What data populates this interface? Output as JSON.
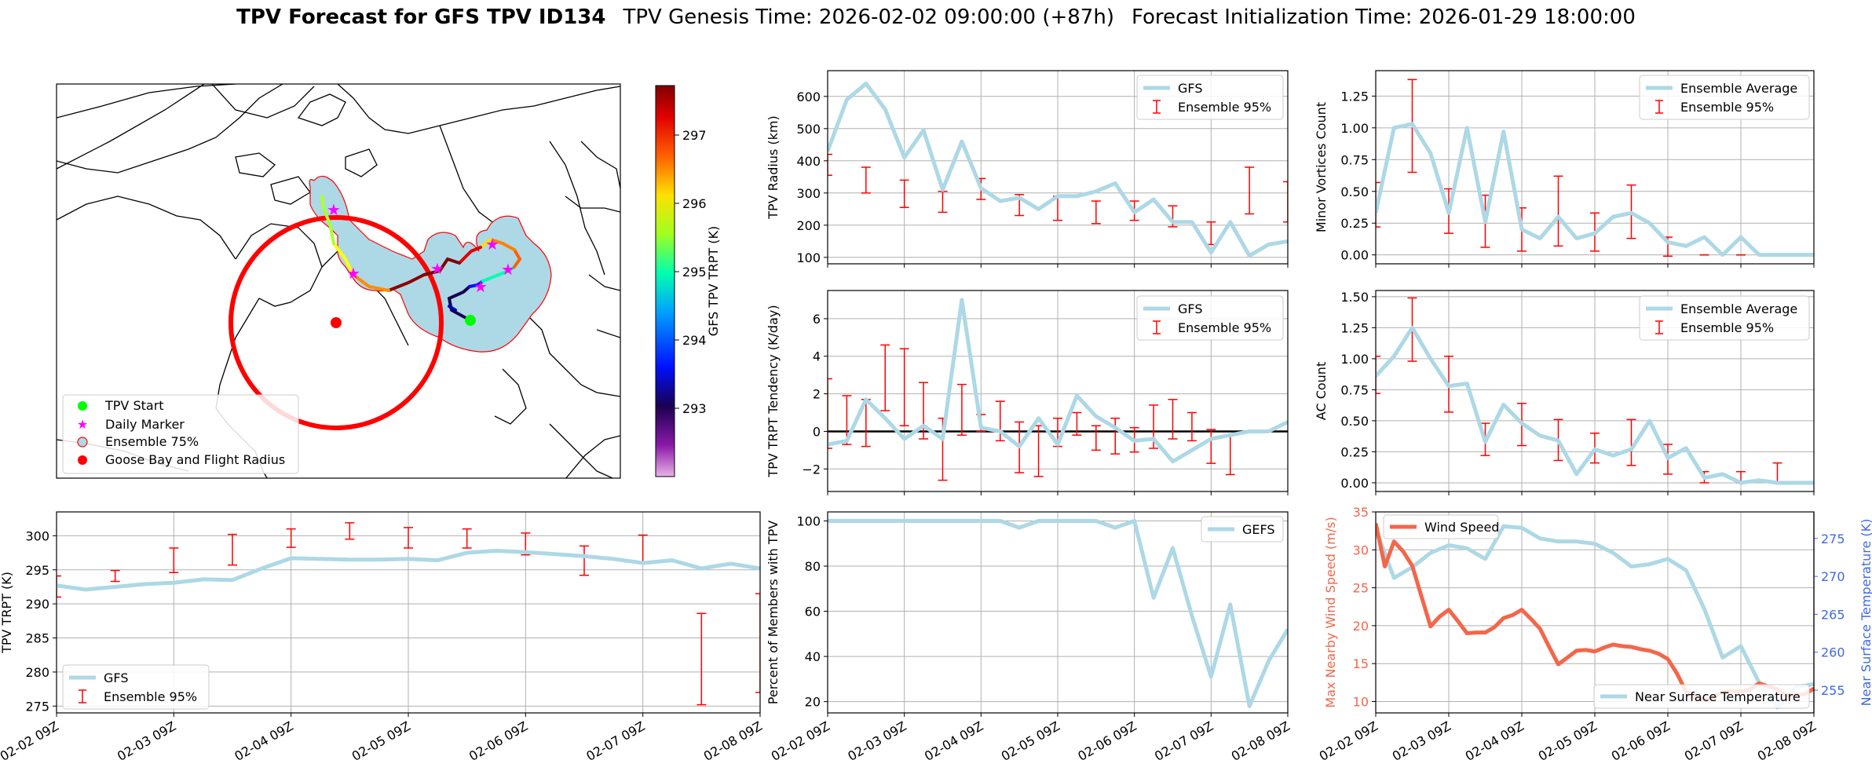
{
  "suptitle": {
    "bold": "TPV Forecast for GFS TPV ID134",
    "genesis": "TPV Genesis Time: 2026-02-02 09:00:00 (+87h)",
    "init": "Forecast Initialization Time: 2026-01-29 18:00:00"
  },
  "colors": {
    "gfs_line": "#add8e6",
    "err_bar": "#ff0000",
    "wind": "#f4664a",
    "temp_axis": "#4169e1",
    "fill75": "#add8e6",
    "marker_start": "#00ff00",
    "marker_daily": "#ff00ff",
    "goose": "#ff0000"
  },
  "map": {
    "legend": [
      "TPV Start",
      "Daily Marker",
      "Ensemble 75%",
      "Goose Bay and Flight Radius"
    ],
    "colorbar": {
      "label": "GFS TPV TRPT (K)",
      "ticks": [
        "293",
        "294",
        "295",
        "296",
        "297"
      ]
    }
  },
  "chart_data": [
    {
      "id": "radius",
      "type": "line",
      "title": "",
      "xlabel": "",
      "ylabel": "TPV Radius (km)",
      "x_range": [
        0,
        144
      ],
      "ylim": [
        80,
        680
      ],
      "yticks": [
        "100",
        "200",
        "300",
        "400",
        "500",
        "600"
      ],
      "legend": [
        "GFS",
        "Ensemble 95%"
      ],
      "series": [
        {
          "name": "GFS",
          "x": [
            0,
            6,
            12,
            18,
            24,
            30,
            36,
            42,
            48,
            54,
            60,
            66,
            72,
            78,
            84,
            90,
            96,
            102,
            108,
            114,
            120,
            126,
            132,
            138,
            144
          ],
          "values": [
            430,
            590,
            640,
            560,
            410,
            495,
            310,
            460,
            315,
            275,
            285,
            250,
            290,
            290,
            305,
            330,
            240,
            280,
            210,
            210,
            115,
            210,
            105,
            140,
            150
          ]
        }
      ],
      "errors": [
        {
          "x": 0,
          "lo": 355,
          "hi": 420
        },
        {
          "x": 12,
          "lo": 300,
          "hi": 380
        },
        {
          "x": 24,
          "lo": 255,
          "hi": 340
        },
        {
          "x": 36,
          "lo": 240,
          "hi": 305
        },
        {
          "x": 48,
          "lo": 280,
          "hi": 345
        },
        {
          "x": 60,
          "lo": 230,
          "hi": 295
        },
        {
          "x": 72,
          "lo": 215,
          "hi": 290
        },
        {
          "x": 84,
          "lo": 205,
          "hi": 275
        },
        {
          "x": 96,
          "lo": 215,
          "hi": 275
        },
        {
          "x": 108,
          "lo": 195,
          "hi": 260
        },
        {
          "x": 120,
          "lo": 140,
          "hi": 210
        },
        {
          "x": 132,
          "lo": 235,
          "hi": 380
        },
        {
          "x": 144,
          "lo": 210,
          "hi": 335
        }
      ]
    },
    {
      "id": "minor",
      "type": "line",
      "ylabel": "Minor Vortices Count",
      "x_range": [
        0,
        144
      ],
      "ylim": [
        -0.07,
        1.45
      ],
      "yticks": [
        "0.00",
        "0.25",
        "0.50",
        "0.75",
        "1.00",
        "1.25"
      ],
      "legend": [
        "Ensemble Average",
        "Ensemble 95%"
      ],
      "series": [
        {
          "name": "Ensemble Average",
          "x": [
            0,
            6,
            12,
            18,
            24,
            30,
            36,
            42,
            48,
            54,
            60,
            66,
            72,
            78,
            84,
            90,
            96,
            102,
            108,
            114,
            120,
            126,
            132,
            138,
            144
          ],
          "values": [
            0.33,
            1.0,
            1.03,
            0.8,
            0.33,
            1.0,
            0.26,
            0.97,
            0.2,
            0.13,
            0.3,
            0.13,
            0.17,
            0.3,
            0.33,
            0.25,
            0.1,
            0.07,
            0.14,
            0.0,
            0.14,
            0.0,
            0.0,
            0.0,
            0.0
          ]
        }
      ],
      "errors": [
        {
          "x": 0,
          "lo": 0.22,
          "hi": 0.57
        },
        {
          "x": 12,
          "lo": 0.65,
          "hi": 1.38
        },
        {
          "x": 24,
          "lo": 0.17,
          "hi": 0.52
        },
        {
          "x": 36,
          "lo": 0.06,
          "hi": 0.47
        },
        {
          "x": 48,
          "lo": 0.03,
          "hi": 0.37
        },
        {
          "x": 60,
          "lo": 0.07,
          "hi": 0.62
        },
        {
          "x": 72,
          "lo": 0.03,
          "hi": 0.33
        },
        {
          "x": 84,
          "lo": 0.13,
          "hi": 0.55
        },
        {
          "x": 96,
          "lo": -0.01,
          "hi": 0.14
        },
        {
          "x": 108,
          "lo": 0.0,
          "hi": 0.0
        },
        {
          "x": 120,
          "lo": 0.0,
          "hi": 0.0
        },
        {
          "x": 132,
          "lo": 0.0,
          "hi": 0.0
        },
        {
          "x": 144,
          "lo": 0.0,
          "hi": 0.0
        }
      ]
    },
    {
      "id": "tendency",
      "type": "line",
      "ylabel": "TPV TRPT Tendency (K/day)",
      "x_range": [
        0,
        144
      ],
      "ylim": [
        -3.2,
        7.5
      ],
      "yticks": [
        "−2",
        "0",
        "2",
        "4",
        "6"
      ],
      "ytick_values": [
        -2,
        0,
        2,
        4,
        6
      ],
      "zero_line": true,
      "legend": [
        "GFS",
        "Ensemble 95%"
      ],
      "series": [
        {
          "name": "GFS",
          "x": [
            0,
            6,
            12,
            18,
            24,
            30,
            36,
            42,
            48,
            54,
            60,
            66,
            72,
            78,
            84,
            90,
            96,
            102,
            108,
            114,
            120,
            126,
            132,
            138,
            144
          ],
          "values": [
            -0.7,
            -0.5,
            1.7,
            0.7,
            -0.4,
            0.3,
            -0.4,
            7.0,
            0.2,
            0.0,
            -0.8,
            0.7,
            -0.7,
            1.9,
            0.8,
            0.2,
            -0.5,
            -0.4,
            -1.6,
            -1.0,
            -0.4,
            -0.2,
            0.0,
            0.0,
            0.5
          ]
        }
      ],
      "errors": [
        {
          "x": 0,
          "lo": -0.9,
          "hi": 2.8
        },
        {
          "x": 6,
          "lo": -0.7,
          "hi": 1.9
        },
        {
          "x": 12,
          "lo": -0.8,
          "hi": 1.7
        },
        {
          "x": 18,
          "lo": 1.1,
          "hi": 4.6
        },
        {
          "x": 24,
          "lo": 0.3,
          "hi": 4.4
        },
        {
          "x": 30,
          "lo": -0.4,
          "hi": 2.6
        },
        {
          "x": 36,
          "lo": -2.6,
          "hi": 0.7
        },
        {
          "x": 42,
          "lo": -0.2,
          "hi": 2.5
        },
        {
          "x": 48,
          "lo": 0.0,
          "hi": 0.9
        },
        {
          "x": 54,
          "lo": -0.5,
          "hi": 1.6
        },
        {
          "x": 60,
          "lo": -2.2,
          "hi": 0.5
        },
        {
          "x": 66,
          "lo": -2.4,
          "hi": 0.3
        },
        {
          "x": 72,
          "lo": -0.8,
          "hi": 0.7
        },
        {
          "x": 78,
          "lo": -0.2,
          "hi": 1.0
        },
        {
          "x": 84,
          "lo": -1.0,
          "hi": 0.3
        },
        {
          "x": 90,
          "lo": -1.2,
          "hi": 0.7
        },
        {
          "x": 96,
          "lo": -1.1,
          "hi": 0.2
        },
        {
          "x": 102,
          "lo": -0.9,
          "hi": 1.4
        },
        {
          "x": 108,
          "lo": -0.4,
          "hi": 1.7
        },
        {
          "x": 114,
          "lo": -0.5,
          "hi": 1.0
        },
        {
          "x": 120,
          "lo": -1.7,
          "hi": 0.1
        },
        {
          "x": 126,
          "lo": -2.3,
          "hi": -0.2
        }
      ]
    },
    {
      "id": "ac",
      "type": "line",
      "ylabel": "AC Count",
      "x_range": [
        0,
        144
      ],
      "ylim": [
        -0.07,
        1.55
      ],
      "yticks": [
        "0.00",
        "0.25",
        "0.50",
        "0.75",
        "1.00",
        "1.25",
        "1.50"
      ],
      "legend": [
        "Ensemble Average",
        "Ensemble 95%"
      ],
      "series": [
        {
          "name": "Ensemble Average",
          "x": [
            0,
            6,
            12,
            18,
            24,
            30,
            36,
            42,
            48,
            54,
            60,
            66,
            72,
            78,
            84,
            90,
            96,
            102,
            108,
            114,
            120,
            126,
            132,
            138,
            144
          ],
          "values": [
            0.86,
            1.02,
            1.25,
            1.0,
            0.78,
            0.8,
            0.33,
            0.63,
            0.48,
            0.38,
            0.34,
            0.07,
            0.27,
            0.22,
            0.27,
            0.5,
            0.2,
            0.28,
            0.04,
            0.07,
            0.0,
            0.02,
            0.0,
            0.0,
            0.0
          ]
        }
      ],
      "errors": [
        {
          "x": 0,
          "lo": 0.72,
          "hi": 1.02
        },
        {
          "x": 12,
          "lo": 0.98,
          "hi": 1.49
        },
        {
          "x": 24,
          "lo": 0.57,
          "hi": 1.02
        },
        {
          "x": 36,
          "lo": 0.22,
          "hi": 0.48
        },
        {
          "x": 48,
          "lo": 0.3,
          "hi": 0.64
        },
        {
          "x": 60,
          "lo": 0.18,
          "hi": 0.51
        },
        {
          "x": 72,
          "lo": 0.16,
          "hi": 0.4
        },
        {
          "x": 84,
          "lo": 0.14,
          "hi": 0.51
        },
        {
          "x": 96,
          "lo": 0.07,
          "hi": 0.31
        },
        {
          "x": 108,
          "lo": 0.0,
          "hi": 0.09
        },
        {
          "x": 120,
          "lo": 0.0,
          "hi": 0.09
        },
        {
          "x": 132,
          "lo": 0.0,
          "hi": 0.16
        },
        {
          "x": 144,
          "lo": 0.0,
          "hi": 0.0
        }
      ]
    },
    {
      "id": "trpt",
      "type": "line",
      "ylabel": "TPV TRPT (K)",
      "x_range": [
        0,
        144
      ],
      "ylim": [
        274,
        303.5
      ],
      "yticks": [
        "275",
        "280",
        "285",
        "290",
        "295",
        "300"
      ],
      "ytick_values": [
        275,
        280,
        285,
        290,
        295,
        300
      ],
      "xticks": [
        "02-02 09Z",
        "02-03 09Z",
        "02-04 09Z",
        "02-05 09Z",
        "02-06 09Z",
        "02-07 09Z",
        "02-08 09Z"
      ],
      "legend": [
        "GFS",
        "Ensemble 95%"
      ],
      "series": [
        {
          "name": "GFS",
          "x": [
            0,
            6,
            12,
            18,
            24,
            30,
            36,
            42,
            48,
            54,
            60,
            66,
            72,
            78,
            84,
            90,
            96,
            102,
            108,
            114,
            120,
            126,
            132,
            138,
            144
          ],
          "values": [
            292.7,
            292.1,
            292.5,
            292.9,
            293.1,
            293.6,
            293.5,
            295.2,
            296.7,
            296.6,
            296.5,
            296.5,
            296.6,
            296.4,
            297.5,
            297.8,
            297.6,
            297.3,
            297.0,
            296.6,
            296.0,
            296.4,
            295.2,
            295.9,
            295.2
          ]
        }
      ],
      "errors": [
        {
          "x": 0,
          "lo": 291.0,
          "hi": 294.1
        },
        {
          "x": 12,
          "lo": 293.3,
          "hi": 294.9
        },
        {
          "x": 24,
          "lo": 294.6,
          "hi": 298.2
        },
        {
          "x": 36,
          "lo": 295.7,
          "hi": 300.2
        },
        {
          "x": 48,
          "lo": 298.3,
          "hi": 301.0
        },
        {
          "x": 60,
          "lo": 299.5,
          "hi": 301.9
        },
        {
          "x": 72,
          "lo": 298.2,
          "hi": 301.2
        },
        {
          "x": 84,
          "lo": 298.2,
          "hi": 301.0
        },
        {
          "x": 96,
          "lo": 297.2,
          "hi": 300.4
        },
        {
          "x": 108,
          "lo": 294.2,
          "hi": 298.5
        },
        {
          "x": 120,
          "lo": 296.1,
          "hi": 300.1
        },
        {
          "x": 132,
          "lo": 275.2,
          "hi": 288.6
        },
        {
          "x": 144,
          "lo": 277.0,
          "hi": 291.5
        }
      ]
    },
    {
      "id": "percent",
      "type": "line",
      "ylabel": "Percent of Members with TPV",
      "x_range": [
        0,
        144
      ],
      "ylim": [
        15,
        104
      ],
      "yticks": [
        "20",
        "40",
        "60",
        "80",
        "100"
      ],
      "ytick_values": [
        20,
        40,
        60,
        80,
        100
      ],
      "xticks": [
        "02-02 09Z",
        "02-03 09Z",
        "02-04 09Z",
        "02-05 09Z",
        "02-06 09Z",
        "02-07 09Z",
        "02-08 09Z"
      ],
      "legend": [
        "GEFS"
      ],
      "series": [
        {
          "name": "GEFS",
          "x": [
            0,
            6,
            12,
            18,
            24,
            30,
            36,
            42,
            48,
            54,
            60,
            66,
            72,
            78,
            84,
            90,
            96,
            102,
            108,
            114,
            120,
            126,
            132,
            138,
            144
          ],
          "values": [
            100,
            100,
            100,
            100,
            100,
            100,
            100,
            100,
            100,
            100,
            97,
            100,
            100,
            100,
            100,
            97,
            100,
            66,
            88,
            58,
            31,
            63,
            18,
            38,
            52
          ]
        }
      ]
    },
    {
      "id": "wind_temp",
      "type": "line",
      "ylabel": "Max Nearby Wind Speed (m/s)",
      "ylabel_right": "Near Surface Temperature (K)",
      "x_range": [
        0,
        144
      ],
      "ylim": [
        8.5,
        35
      ],
      "ylim_right": [
        252,
        278.5
      ],
      "yticks": [
        "10",
        "15",
        "20",
        "25",
        "30",
        "35"
      ],
      "ytick_values": [
        10,
        15,
        20,
        25,
        30,
        35
      ],
      "yticks_right": [
        "255",
        "260",
        "265",
        "270",
        "275"
      ],
      "ytick_values_right": [
        255,
        260,
        265,
        270,
        275
      ],
      "xticks": [
        "02-02 09Z",
        "02-03 09Z",
        "02-04 09Z",
        "02-05 09Z",
        "02-06 09Z",
        "02-07 09Z",
        "02-08 09Z"
      ],
      "legend": [
        "Wind Speed"
      ],
      "legend_right": [
        "Near Surface Temperature"
      ],
      "series": [
        {
          "name": "Wind Speed",
          "x": [
            0,
            3,
            6,
            9,
            12,
            15,
            18,
            21,
            24,
            27,
            30,
            33,
            36,
            39,
            42,
            45,
            48,
            51,
            54,
            57,
            60,
            63,
            66,
            69,
            72,
            75,
            78,
            81,
            84,
            87,
            90,
            93,
            96,
            99,
            102,
            105,
            108,
            111,
            114,
            117,
            120,
            123,
            126,
            129,
            132,
            135,
            138,
            141,
            144
          ],
          "values": [
            33.5,
            27.8,
            31.1,
            29.8,
            27.9,
            23.9,
            19.9,
            21.2,
            22.1,
            20.6,
            19.0,
            19.1,
            19.1,
            19.8,
            21.0,
            21.4,
            22.1,
            20.9,
            19.6,
            17.2,
            14.9,
            15.8,
            16.7,
            16.8,
            16.6,
            17.1,
            17.5,
            17.3,
            17.2,
            16.9,
            16.7,
            16.3,
            15.6,
            13.7,
            11.3,
            10.5,
            10.2,
            10.6,
            11.2,
            11.4,
            11.3,
            11.6,
            12.4,
            12.0,
            11.6,
            10.8,
            10.8,
            11.0,
            11.7
          ]
        },
        {
          "name": "Near Surface Temperature",
          "x": [
            0,
            6,
            12,
            18,
            24,
            30,
            36,
            42,
            48,
            54,
            60,
            66,
            72,
            78,
            84,
            90,
            96,
            102,
            108,
            114,
            120,
            126,
            132,
            138,
            144
          ],
          "values": [
            276.2,
            269.8,
            271.2,
            273.1,
            274.1,
            273.7,
            272.3,
            276.6,
            276.4,
            275.0,
            274.6,
            274.6,
            274.3,
            273.1,
            271.3,
            271.6,
            272.3,
            270.8,
            265.7,
            259.3,
            260.8,
            256.0,
            252.7,
            255.4,
            255.8
          ]
        }
      ]
    }
  ]
}
